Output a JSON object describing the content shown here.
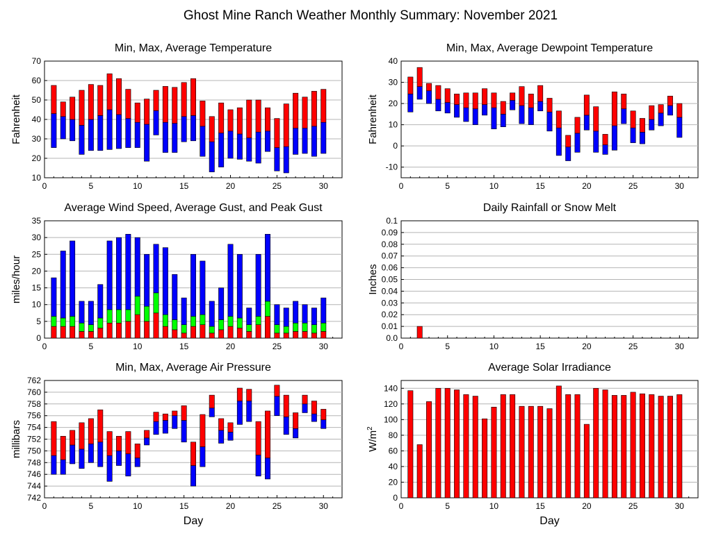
{
  "title": "Ghost Mine Ranch Weather Monthly Summary: November 2021",
  "colors": {
    "red": "#ff0000",
    "blue": "#0000ff",
    "green": "#00ff00",
    "grid": "#b4b4b4"
  },
  "chart_data": [
    {
      "id": "temp",
      "type": "bar",
      "title": "Min, Max, Average Temperature",
      "xlabel": "",
      "ylabel": "Fahrenheit",
      "xlim": [
        0,
        32
      ],
      "ylim": [
        10,
        70
      ],
      "xticks": [
        0,
        5,
        10,
        15,
        20,
        25,
        30
      ],
      "yticks": [
        10,
        20,
        30,
        40,
        50,
        60,
        70
      ],
      "x": [
        1,
        2,
        3,
        4,
        5,
        6,
        7,
        8,
        9,
        10,
        11,
        12,
        13,
        14,
        15,
        16,
        17,
        18,
        19,
        20,
        21,
        22,
        23,
        24,
        25,
        26,
        27,
        28,
        29,
        30
      ],
      "series": [
        {
          "name": "Min",
          "values": [
            25.5,
            30,
            29,
            22,
            24,
            24,
            24.5,
            25,
            25.5,
            25.5,
            18.5,
            32,
            23,
            23,
            28.5,
            29,
            21,
            13,
            15.5,
            20,
            19.5,
            18.5,
            17.5,
            23.5,
            13.5,
            12.5,
            22,
            22.5,
            21,
            22.5
          ]
        },
        {
          "name": "Average",
          "values": [
            43,
            41.5,
            40,
            37,
            40,
            42,
            45,
            42.5,
            40.5,
            38.5,
            37.5,
            44.5,
            38.5,
            38,
            41.5,
            42,
            36.5,
            28.5,
            33,
            34,
            32.5,
            30.5,
            33.5,
            34,
            25.5,
            26,
            35.5,
            35.5,
            36.5,
            38.5
          ]
        },
        {
          "name": "Max",
          "values": [
            57.5,
            49,
            51.5,
            55,
            58,
            57.5,
            63.5,
            61,
            55.5,
            48.5,
            50.5,
            55,
            57,
            56.5,
            59,
            61,
            49.5,
            41.5,
            48.5,
            45,
            46,
            50,
            50,
            46,
            40.5,
            48,
            53.5,
            51.5,
            54.5,
            55.5
          ]
        }
      ]
    },
    {
      "id": "dew",
      "type": "bar",
      "title": "Min, Max, Average Dewpoint Temperature",
      "xlabel": "",
      "ylabel": "Fahrenheit",
      "xlim": [
        0,
        32
      ],
      "ylim": [
        -15,
        40
      ],
      "xticks": [
        0,
        5,
        10,
        15,
        20,
        25,
        30
      ],
      "yticks": [
        -10,
        0,
        10,
        20,
        30,
        40
      ],
      "x": [
        1,
        2,
        3,
        4,
        5,
        6,
        7,
        8,
        9,
        10,
        11,
        12,
        13,
        14,
        15,
        16,
        17,
        18,
        19,
        20,
        21,
        22,
        23,
        24,
        25,
        26,
        27,
        28,
        29,
        30
      ],
      "series": [
        {
          "name": "Min",
          "values": [
            16,
            22,
            20,
            16.5,
            15.5,
            13.5,
            11.5,
            10,
            14.5,
            8,
            9,
            17,
            10.5,
            10,
            16.5,
            7,
            -4.5,
            -7,
            -3,
            7.5,
            -3,
            -4,
            -2,
            10.5,
            1.5,
            1,
            7.5,
            9.5,
            14.5,
            4
          ]
        },
        {
          "name": "Average",
          "values": [
            24.5,
            28,
            26,
            22,
            20.5,
            19.5,
            18,
            17.5,
            19.5,
            18,
            15,
            21.5,
            19,
            18,
            21,
            16,
            8.5,
            -0.5,
            6,
            14.5,
            7,
            0.5,
            9.5,
            17.5,
            8.5,
            6.5,
            12.5,
            15.5,
            19,
            13.5
          ]
        },
        {
          "name": "Max",
          "values": [
            32.5,
            37,
            29.5,
            28.5,
            27,
            24.5,
            25,
            25,
            27,
            25,
            21,
            25,
            28,
            24.5,
            28.5,
            22.5,
            16.5,
            5,
            13.5,
            24,
            18.5,
            5.5,
            25.5,
            24.5,
            16.5,
            13,
            19,
            19.5,
            23.5,
            20
          ]
        }
      ]
    },
    {
      "id": "wind",
      "type": "bar",
      "title": "Average Wind Speed, Average Gust, and Peak Gust",
      "xlabel": "",
      "ylabel": "miles/hour",
      "xlim": [
        0,
        32
      ],
      "ylim": [
        0,
        35
      ],
      "xticks": [
        0,
        5,
        10,
        15,
        20,
        25,
        30
      ],
      "yticks": [
        0,
        5,
        10,
        15,
        20,
        25,
        30,
        35
      ],
      "x": [
        1,
        2,
        3,
        4,
        5,
        6,
        7,
        8,
        9,
        10,
        11,
        12,
        13,
        14,
        15,
        16,
        17,
        18,
        19,
        20,
        21,
        22,
        23,
        24,
        25,
        26,
        27,
        28,
        29,
        30
      ],
      "series": [
        {
          "name": "Average Wind Speed",
          "values": [
            3.5,
            3.5,
            3.5,
            2,
            2,
            3,
            4.5,
            4.5,
            5,
            7,
            5,
            7.5,
            3.5,
            2.5,
            1.5,
            3.5,
            4,
            1.5,
            2.5,
            3.5,
            3,
            2,
            4,
            6.5,
            1.5,
            1.5,
            2,
            2,
            1.5,
            2
          ]
        },
        {
          "name": "Average Gust",
          "values": [
            6.5,
            6,
            6.5,
            4.5,
            4,
            6,
            8.5,
            8.5,
            8.5,
            12.5,
            9.5,
            13.5,
            7,
            5.5,
            4,
            6.5,
            7,
            3.5,
            5.5,
            6.5,
            6,
            4,
            6.5,
            11,
            4,
            3.5,
            4.5,
            4.5,
            4,
            4.5
          ]
        },
        {
          "name": "Peak Gust",
          "values": [
            18,
            26,
            29,
            11,
            11,
            16,
            29,
            30,
            31,
            30,
            25,
            28,
            27,
            19,
            12,
            25,
            23,
            11,
            15,
            28,
            25,
            9,
            25,
            31,
            10,
            9,
            11,
            10,
            9,
            12
          ]
        }
      ]
    },
    {
      "id": "rain",
      "type": "bar",
      "title": "Daily Rainfall or Snow Melt",
      "xlabel": "",
      "ylabel": "Inches",
      "xlim": [
        0,
        32
      ],
      "ylim": [
        0,
        0.1
      ],
      "xticks": [
        0,
        5,
        10,
        15,
        20,
        25,
        30
      ],
      "yticks": [
        0,
        0.01,
        0.02,
        0.03,
        0.04,
        0.05,
        0.06,
        0.07,
        0.08,
        0.09,
        0.1
      ],
      "ytick_labels": [
        "0.0",
        "0.01",
        "0.02",
        "0.03",
        "0.04",
        "0.05",
        "0.06",
        "0.07",
        "0.08",
        "0.09",
        "0.1"
      ],
      "x": [
        2
      ],
      "values": [
        0.01
      ]
    },
    {
      "id": "press",
      "type": "bar",
      "title": "Min, Max, Average Air Pressure",
      "xlabel": "Day",
      "ylabel": "millibars",
      "xlim": [
        0,
        32
      ],
      "ylim": [
        742,
        762
      ],
      "xticks": [
        0,
        5,
        10,
        15,
        20,
        25,
        30
      ],
      "yticks": [
        742,
        744,
        746,
        748,
        750,
        752,
        754,
        756,
        758,
        760,
        762
      ],
      "x": [
        1,
        2,
        3,
        4,
        5,
        6,
        7,
        8,
        9,
        10,
        11,
        12,
        13,
        14,
        15,
        16,
        17,
        18,
        19,
        20,
        21,
        22,
        23,
        24,
        25,
        26,
        27,
        28,
        29,
        30
      ],
      "series": [
        {
          "name": "Min",
          "values": [
            746,
            746,
            747.8,
            747,
            748,
            747.3,
            744.8,
            747.5,
            745.7,
            747.3,
            751,
            752.8,
            753,
            753.8,
            751.5,
            744,
            747.3,
            755.8,
            751.3,
            751.8,
            754.5,
            755,
            745.7,
            745.2,
            756,
            752.8,
            752.2,
            756.5,
            755,
            753.8
          ]
        },
        {
          "name": "Average",
          "values": [
            749.2,
            748.5,
            751,
            750.3,
            751.2,
            751.5,
            749.2,
            750,
            749.5,
            748.8,
            752.2,
            755,
            755.2,
            756,
            755.2,
            747.5,
            750.7,
            757.3,
            753.5,
            753.2,
            758.5,
            758.5,
            749.3,
            748.8,
            759.3,
            755.8,
            753.8,
            758,
            756.3,
            755.3
          ]
        },
        {
          "name": "Max",
          "values": [
            755,
            752.5,
            753.5,
            754.8,
            755.5,
            757,
            753.3,
            752.5,
            753.3,
            751.2,
            753.5,
            756.6,
            756.3,
            756.8,
            757.7,
            751.5,
            756.2,
            759.5,
            755.5,
            754.8,
            760.7,
            760.5,
            755,
            756.8,
            761.2,
            759.5,
            756.5,
            759.5,
            758.5,
            757.1
          ]
        }
      ]
    },
    {
      "id": "solar",
      "type": "bar",
      "title": "Average Solar Irradiance",
      "xlabel": "Day",
      "ylabel": "W/m²",
      "xlim": [
        0,
        32
      ],
      "ylim": [
        0,
        150
      ],
      "xticks": [
        0,
        5,
        10,
        15,
        20,
        25,
        30
      ],
      "yticks": [
        0,
        20,
        40,
        60,
        80,
        100,
        120,
        140
      ],
      "x": [
        1,
        2,
        3,
        4,
        5,
        6,
        7,
        8,
        9,
        10,
        11,
        12,
        13,
        14,
        15,
        16,
        17,
        18,
        19,
        20,
        21,
        22,
        23,
        24,
        25,
        26,
        27,
        28,
        29,
        30
      ],
      "values": [
        137,
        68,
        123,
        140,
        140,
        138,
        132,
        130,
        101,
        116,
        132,
        132,
        117,
        117,
        117,
        114,
        143,
        132,
        132,
        94,
        140,
        138,
        131,
        131,
        135,
        133,
        132,
        130,
        130,
        132
      ]
    }
  ]
}
